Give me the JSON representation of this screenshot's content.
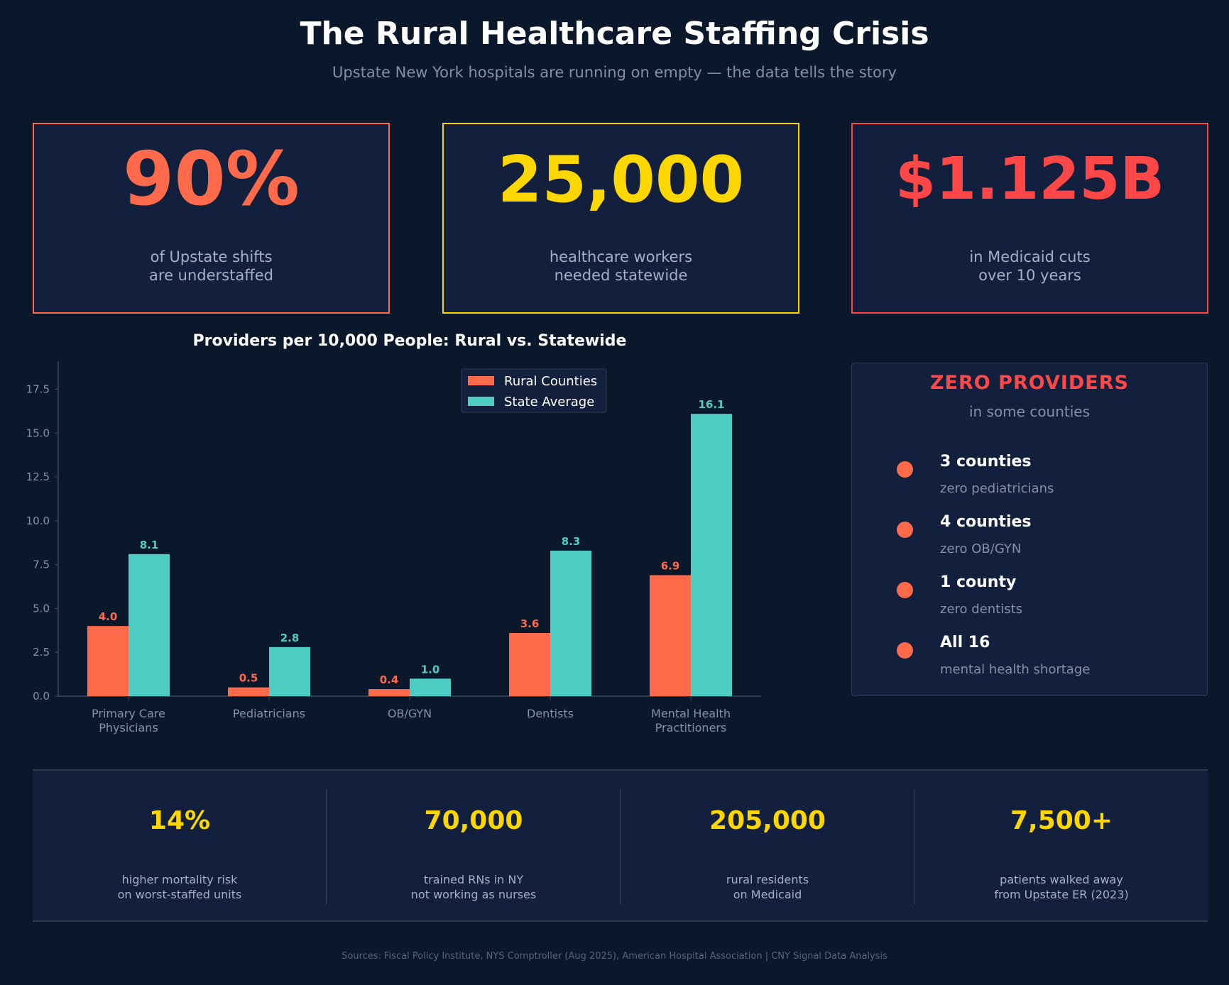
{
  "header": {
    "title": "The Rural Healthcare Staffing Crisis",
    "subtitle": "Upstate New York hospitals are running on empty — the data tells the story"
  },
  "cards": [
    {
      "value": "90%",
      "label": "of Upstate shifts\nare understaffed",
      "color": "#ff6b4a"
    },
    {
      "value": "25,000",
      "label": "healthcare workers\nneeded statewide",
      "color": "#ffd700"
    },
    {
      "value": "$1.125B",
      "label": "in Medicaid cuts\nover 10 years",
      "color": "#ff4747"
    }
  ],
  "chart_data": {
    "type": "bar",
    "title": "Providers per 10,000 People: Rural vs. Statewide",
    "categories": [
      "Primary Care\nPhysicians",
      "Pediatricians",
      "OB/GYN",
      "Dentists",
      "Mental Health\nPractitioners"
    ],
    "series": [
      {
        "name": "Rural Counties",
        "values": [
          4.0,
          0.5,
          0.4,
          3.6,
          6.9
        ],
        "color": "#ff6b4a"
      },
      {
        "name": "State Average",
        "values": [
          8.1,
          2.8,
          1.0,
          8.3,
          16.1
        ],
        "color": "#4ecdc4"
      }
    ],
    "yticks": [
      "0.0",
      "2.5",
      "5.0",
      "7.5",
      "10.0",
      "12.5",
      "15.0",
      "17.5"
    ],
    "ylim": [
      0,
      19.1
    ],
    "legend": "top-right",
    "grid": false
  },
  "zero_providers": {
    "title": "ZERO PROVIDERS",
    "subtitle": "in some counties",
    "items": [
      {
        "head": "3 counties",
        "desc": "zero pediatricians"
      },
      {
        "head": "4 counties",
        "desc": "zero OB/GYN"
      },
      {
        "head": "1 county",
        "desc": "zero dentists"
      },
      {
        "head": "All 16",
        "desc": "mental health shortage"
      }
    ]
  },
  "stats": [
    {
      "value": "14%",
      "label": "higher mortality risk\non worst-staffed units"
    },
    {
      "value": "70,000",
      "label": "trained RNs in NY\nnot working as nurses"
    },
    {
      "value": "205,000",
      "label": "rural residents\non Medicaid"
    },
    {
      "value": "7,500+",
      "label": "patients walked away\nfrom Upstate ER (2023)"
    }
  ],
  "footer": {
    "sources": "Sources: Fiscal Policy Institute, NYS Comptroller (Aug 2025), American Hospital Association  |  CNY Signal Data Analysis"
  }
}
